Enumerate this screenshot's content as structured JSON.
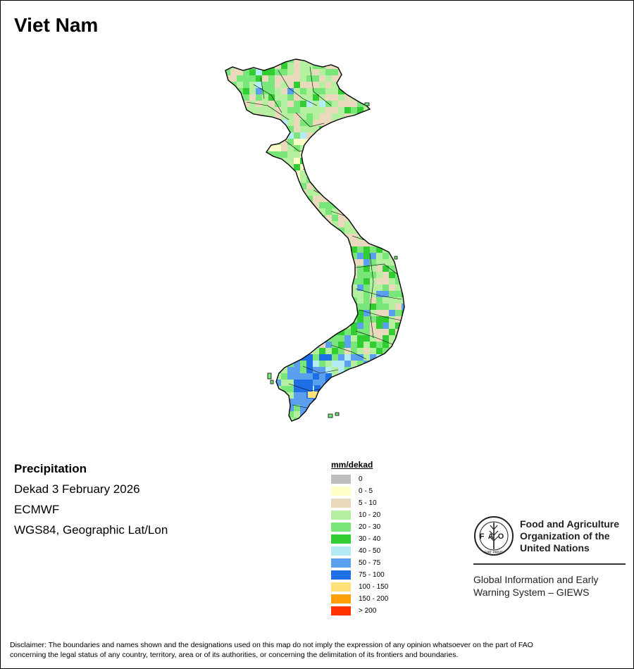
{
  "title": "Viet Nam",
  "info": {
    "variable": "Precipitation",
    "period": "Dekad 3 February 2026",
    "source": "ECMWF",
    "projection": "WGS84, Geographic Lat/Lon"
  },
  "legend": {
    "title": "mm/dekad",
    "items": [
      {
        "label": "0",
        "color": "#bebebe"
      },
      {
        "label": "0 - 5",
        "color": "#ffffc8"
      },
      {
        "label": "5 - 10",
        "color": "#ead9bd"
      },
      {
        "label": "10 - 20",
        "color": "#b4f0a0"
      },
      {
        "label": "20 - 30",
        "color": "#78e678"
      },
      {
        "label": "30 - 40",
        "color": "#32cd32"
      },
      {
        "label": "40 - 50",
        "color": "#b4ebf5"
      },
      {
        "label": "50 - 75",
        "color": "#5aa0ee"
      },
      {
        "label": "75 - 100",
        "color": "#1e6ee6"
      },
      {
        "label": "100 - 150",
        "color": "#ffe178"
      },
      {
        "label": "150 - 200",
        "color": "#ffa00a"
      },
      {
        "label": "> 200",
        "color": "#ff3200"
      }
    ]
  },
  "organization": {
    "lines": [
      "Food and Agriculture",
      "Organization of the",
      "United Nations"
    ],
    "logo_text": "FAO",
    "logo_motto": "FIAT PANIS"
  },
  "system": {
    "lines": [
      "Global Information and Early",
      "Warning System – GIEWS"
    ]
  },
  "disclaimer": {
    "lines": [
      "Disclaimer: The boundaries and names shown and the designations used on this map do not imply the expression of any opinion whatsoever on the part of FAO",
      "concerning the legal status of any country, territory, area or of its authorities, or concerning the delimitation of its frontiers and boundaries."
    ]
  }
}
